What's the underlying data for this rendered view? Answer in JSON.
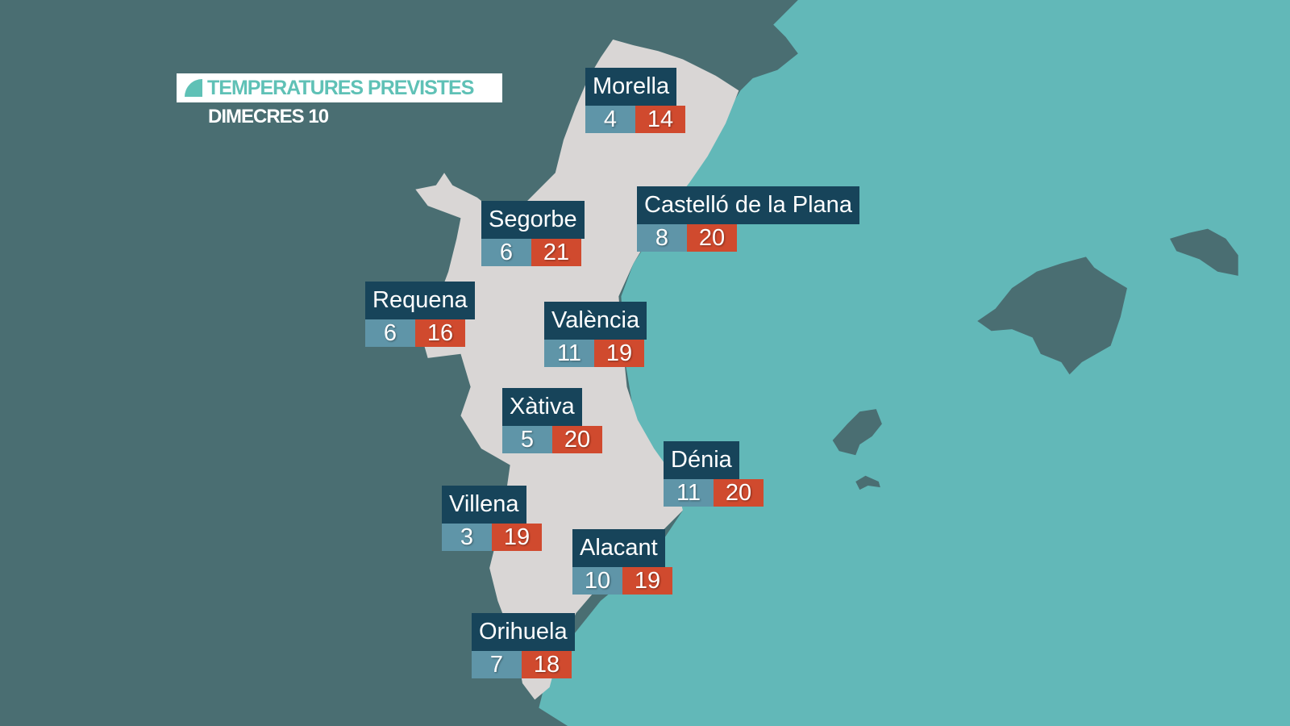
{
  "header": {
    "title": "TEMPERATURES PREVISTES",
    "subtitle": "DIMECRES 10"
  },
  "colors": {
    "land": "#4a6e72",
    "sea": "#62b8b8",
    "region": "#d9d6d5",
    "label_bg": "#17445a",
    "min_temp": "#5f95a8",
    "max_temp": "#d04a2e",
    "accent": "#5fc1b6"
  },
  "cities": [
    {
      "name": "Morella",
      "min": "4",
      "max": "14"
    },
    {
      "name": "Segorbe",
      "min": "6",
      "max": "21"
    },
    {
      "name": "Castelló de la Plana",
      "min": "8",
      "max": "20"
    },
    {
      "name": "Requena",
      "min": "6",
      "max": "16"
    },
    {
      "name": "València",
      "min": "11",
      "max": "19"
    },
    {
      "name": "Xàtiva",
      "min": "5",
      "max": "20"
    },
    {
      "name": "Dénia",
      "min": "11",
      "max": "20"
    },
    {
      "name": "Villena",
      "min": "3",
      "max": "19"
    },
    {
      "name": "Alacant",
      "min": "10",
      "max": "19"
    },
    {
      "name": "Orihuela",
      "min": "7",
      "max": "18"
    }
  ]
}
